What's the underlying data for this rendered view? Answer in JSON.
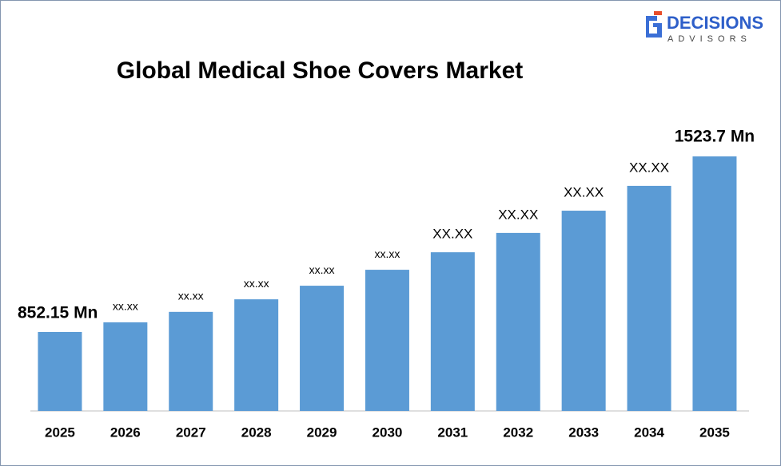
{
  "logo": {
    "name": "DECISIONS",
    "tagline": "ADVISORS"
  },
  "chart_data": {
    "type": "bar",
    "title": "Global Medical Shoe Covers Market",
    "categories": [
      "2025",
      "2026",
      "2027",
      "2028",
      "2029",
      "2030",
      "2031",
      "2032",
      "2033",
      "2034",
      "2035"
    ],
    "values": [
      852.15,
      889,
      929,
      977,
      1029,
      1090,
      1157,
      1231,
      1316,
      1411,
      1523.7
    ],
    "value_labels": [
      "852.15 Mn",
      "xx.xx",
      "xx.xx",
      "xx.xx",
      "xx.xx",
      "xx.xx",
      "XX.XX",
      "XX.XX",
      "XX.XX",
      "XX.XX",
      "1523.7 Mn"
    ],
    "color": "#5b9bd5",
    "ylim": [
      550,
      1600
    ]
  }
}
